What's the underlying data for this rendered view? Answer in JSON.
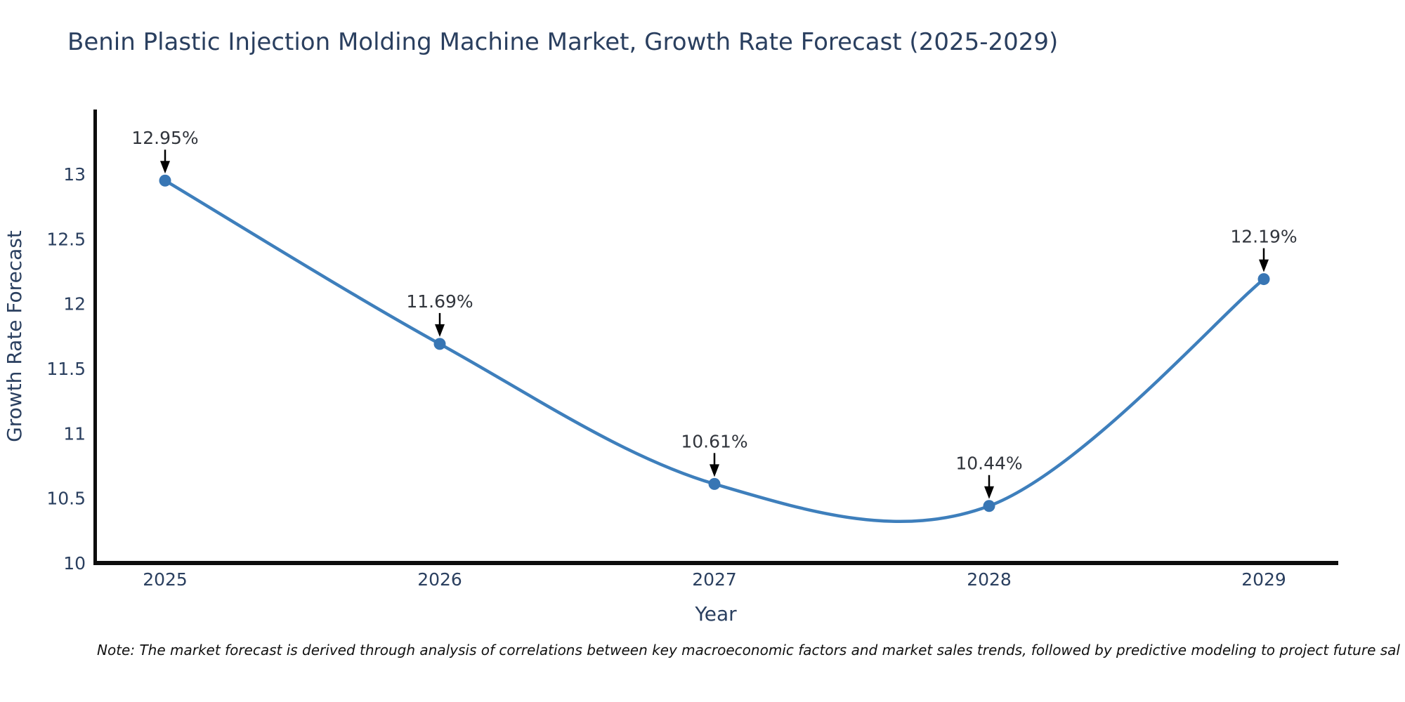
{
  "title": "Benin Plastic Injection Molding Machine Market, Growth Rate Forecast (2025-2029)",
  "note": "Note: The market forecast is derived through analysis of correlations between key macroeconomic factors and market sales trends, followed by predictive modeling to project future sal",
  "chart_data": {
    "type": "line",
    "line_shape": "spline",
    "x": [
      2025,
      2026,
      2027,
      2028,
      2029
    ],
    "x_tick_labels": [
      "2025",
      "2026",
      "2027",
      "2028",
      "2029"
    ],
    "series": [
      {
        "name": "Growth Rate Forecast",
        "values": [
          12.95,
          11.69,
          10.61,
          10.44,
          12.19
        ]
      }
    ],
    "point_labels": [
      "12.95%",
      "11.69%",
      "10.61%",
      "10.44%",
      "12.19%"
    ],
    "xlabel": "Year",
    "ylabel": "Growth Rate Forecast",
    "y_ticks": [
      10,
      10.5,
      11,
      11.5,
      12,
      12.5,
      13
    ],
    "ylim": [
      10,
      13.5
    ],
    "grid": false,
    "legend": "none",
    "markers": true,
    "annotations_have_arrows": true,
    "colors": {
      "line": "#3e7fbc",
      "marker": "#3876b4",
      "axis_spine": "#0d0d0d",
      "axis_text": "#2a3f5f",
      "annotation_text": "#31353c",
      "arrow": "#000000",
      "background": "#ffffff"
    }
  }
}
